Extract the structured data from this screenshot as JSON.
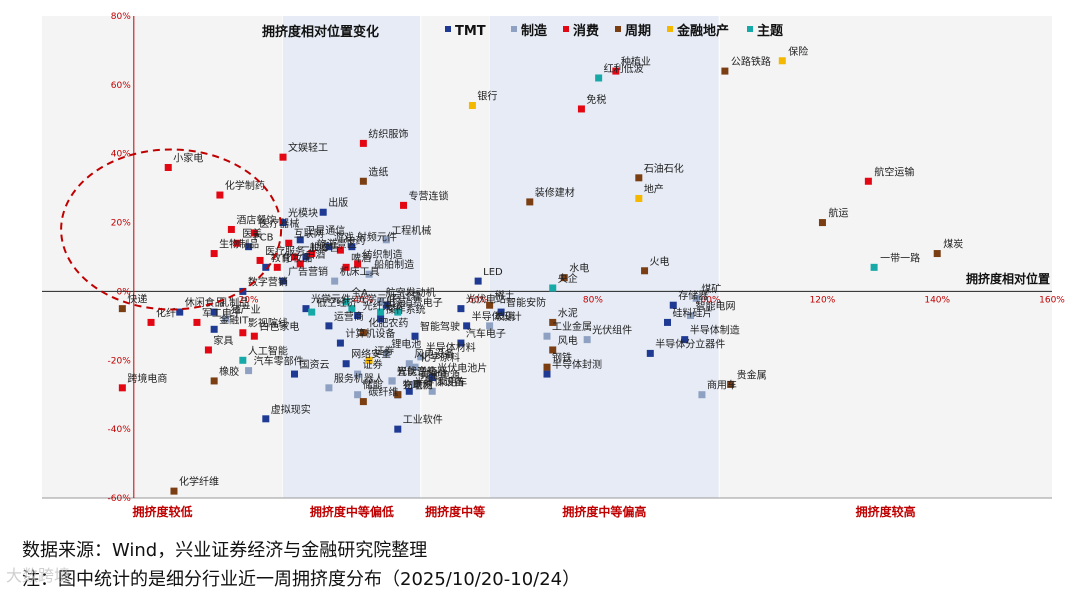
{
  "chart_data": {
    "type": "scatter",
    "title": "拥挤度相对位置变化",
    "xlabel": "拥挤度相对位置",
    "ylabel": "",
    "xlim": [
      -16,
      160
    ],
    "ylim": [
      -60,
      80
    ],
    "xticks": [
      20,
      40,
      60,
      80,
      100,
      120,
      140,
      160
    ],
    "xtick_labels": [
      "20%",
      "40%",
      "60%",
      "80%",
      "100%",
      "120%",
      "140%",
      "160%"
    ],
    "yticks": [
      -60,
      -40,
      -20,
      0,
      20,
      40,
      60,
      80
    ],
    "ytick_labels": [
      "-60%",
      "-40%",
      "-20%",
      "0%",
      "20%",
      "40%",
      "60%",
      "80%"
    ],
    "grid": false,
    "legend_position": "top",
    "bands": [
      {
        "label": "拥挤度较低",
        "from": -16,
        "to": 26,
        "shaded": false
      },
      {
        "label": "拥挤度中等偏低",
        "from": 26,
        "to": 50,
        "shaded": true
      },
      {
        "label": "拥挤度中等",
        "from": 50,
        "to": 62,
        "shaded": false
      },
      {
        "label": "拥挤度中等偏高",
        "from": 62,
        "to": 102,
        "shaded": true
      },
      {
        "label": "拥挤度较高",
        "from": 102,
        "to": 160,
        "shaded": false
      }
    ],
    "series": [
      {
        "name": "TMT",
        "color": "#1f3a93",
        "points": [
          {
            "x": 44,
            "y": -4,
            "label": "云计算"
          },
          {
            "x": 26,
            "y": 20,
            "label": "光模块"
          },
          {
            "x": 29,
            "y": 15,
            "label": "卫星通信"
          },
          {
            "x": 33,
            "y": 23,
            "label": "出版"
          },
          {
            "x": 30,
            "y": 10,
            "label": "IDC"
          },
          {
            "x": 34,
            "y": 13,
            "label": "游戏"
          },
          {
            "x": 38,
            "y": 13,
            "label": "射频元件"
          },
          {
            "x": 20,
            "y": 13,
            "label": "PCB"
          },
          {
            "x": 19,
            "y": 0,
            "label": "数字营销"
          },
          {
            "x": 8,
            "y": -6,
            "label": "休闲食品"
          },
          {
            "x": 14,
            "y": -6,
            "label": "乳制品"
          },
          {
            "x": 23,
            "y": 7,
            "label": "教育"
          },
          {
            "x": 26,
            "y": 3,
            "label": "广告营销"
          },
          {
            "x": 34,
            "y": -10,
            "label": "运营商"
          },
          {
            "x": 39,
            "y": -7,
            "label": "光纤光缆"
          },
          {
            "x": 43,
            "y": -8,
            "label": "操作系统"
          },
          {
            "x": 36,
            "y": -15,
            "label": "计算机设备"
          },
          {
            "x": 37,
            "y": -21,
            "label": "网络安全"
          },
          {
            "x": 28,
            "y": -24,
            "label": "国资云"
          },
          {
            "x": 45,
            "y": -26,
            "label": "智能音箱"
          },
          {
            "x": 46,
            "y": -30,
            "label": "物联网"
          },
          {
            "x": 52,
            "y": -25,
            "label": "光伏电池片"
          },
          {
            "x": 48,
            "y": -29,
            "label": "半导体设备"
          },
          {
            "x": 46,
            "y": -40,
            "label": "工业软件"
          },
          {
            "x": 23,
            "y": -37,
            "label": "虚拟现实"
          },
          {
            "x": 60,
            "y": 3,
            "label": "LED"
          },
          {
            "x": 64,
            "y": -6,
            "label": "智能安防"
          },
          {
            "x": 57,
            "y": -5,
            "label": "光伏电站"
          },
          {
            "x": 58,
            "y": -10,
            "label": "半导体设计"
          },
          {
            "x": 49,
            "y": -13,
            "label": "智能驾驶"
          },
          {
            "x": 57,
            "y": -15,
            "label": "汽车电子"
          },
          {
            "x": 94,
            "y": -4,
            "label": "存储器"
          },
          {
            "x": 93,
            "y": -9,
            "label": "硅料硅片"
          },
          {
            "x": 96,
            "y": -14,
            "label": "半导体制造"
          },
          {
            "x": 90,
            "y": -18,
            "label": "半导体分立器件"
          },
          {
            "x": 72,
            "y": -24,
            "label": "半导体封测"
          },
          {
            "x": 30,
            "y": -5,
            "label": "光学元件"
          },
          {
            "x": 14,
            "y": -11,
            "label": "金融IT"
          }
        ]
      },
      {
        "name": "制造",
        "color": "#8ea1c2",
        "points": [
          {
            "x": 44,
            "y": 15,
            "label": "工程机械"
          },
          {
            "x": 35,
            "y": 3,
            "label": "机床工具"
          },
          {
            "x": 41,
            "y": 5,
            "label": "船舶制造"
          },
          {
            "x": 43,
            "y": -3,
            "label": "航空发动机"
          },
          {
            "x": 34,
            "y": -28,
            "label": "服务机器人"
          },
          {
            "x": 39,
            "y": -24,
            "label": "证券"
          },
          {
            "x": 39,
            "y": -30,
            "label": "储能"
          },
          {
            "x": 45,
            "y": -26,
            "label": "光伏逆变器"
          },
          {
            "x": 49,
            "y": -27,
            "label": "其他电源"
          },
          {
            "x": 52,
            "y": -29,
            "label": "乘用车"
          },
          {
            "x": 48,
            "y": -21,
            "label": "风电设备"
          },
          {
            "x": 44,
            "y": -18,
            "label": "锂电池"
          },
          {
            "x": 50,
            "y": -19,
            "label": "半导体材料"
          },
          {
            "x": 49,
            "y": -22,
            "label": "化学原料"
          },
          {
            "x": 62,
            "y": -10,
            "label": "玻璃"
          },
          {
            "x": 72,
            "y": -13,
            "label": "工业金属"
          },
          {
            "x": 79,
            "y": -14,
            "label": "光伏组件"
          },
          {
            "x": 98,
            "y": -2,
            "label": "煤矿"
          },
          {
            "x": 97,
            "y": -7,
            "label": "智能电网"
          },
          {
            "x": 99,
            "y": -30,
            "label": "商用车"
          },
          {
            "x": 20,
            "y": -23,
            "label": "汽车零部件"
          },
          {
            "x": 16,
            "y": -8,
            "label": "猪产业"
          }
        ]
      },
      {
        "name": "消费",
        "color": "#e30613",
        "points": [
          {
            "x": 6,
            "y": 36,
            "label": "小家电"
          },
          {
            "x": 15,
            "y": 28,
            "label": "化学制药"
          },
          {
            "x": 17,
            "y": 18,
            "label": "酒店餐饮"
          },
          {
            "x": 18,
            "y": 14,
            "label": "医美"
          },
          {
            "x": 14,
            "y": 11,
            "label": "生物制品"
          },
          {
            "x": 22,
            "y": 9,
            "label": "医疗服务"
          },
          {
            "x": 25,
            "y": 7,
            "label": "化妆品"
          },
          {
            "x": 27,
            "y": 14,
            "label": "互联网"
          },
          {
            "x": 29,
            "y": 8,
            "label": "白酒"
          },
          {
            "x": 31,
            "y": 11,
            "label": "旅游景区"
          },
          {
            "x": 28,
            "y": 10,
            "label": "一般零售"
          },
          {
            "x": 36,
            "y": 12,
            "label": "中药"
          },
          {
            "x": 39,
            "y": 8,
            "label": "纺织制造"
          },
          {
            "x": 37,
            "y": 7,
            "label": "啤酒"
          },
          {
            "x": 40,
            "y": 43,
            "label": "纺织服饰"
          },
          {
            "x": 26,
            "y": 39,
            "label": "文娱轻工"
          },
          {
            "x": 47,
            "y": 25,
            "label": "专营连锁"
          },
          {
            "x": 21,
            "y": 17,
            "label": "医疗器械"
          },
          {
            "x": 19,
            "y": -12,
            "label": "影视院线"
          },
          {
            "x": 11,
            "y": -9,
            "label": "军工电子"
          },
          {
            "x": 13,
            "y": -17,
            "label": "家具"
          },
          {
            "x": 21,
            "y": -13,
            "label": "白色家电"
          },
          {
            "x": -2,
            "y": -28,
            "label": "跨境电商"
          },
          {
            "x": 78,
            "y": 53,
            "label": "免税"
          },
          {
            "x": 84,
            "y": 64,
            "label": "种植业"
          },
          {
            "x": 3,
            "y": -9,
            "label": "化纤"
          },
          {
            "x": 128,
            "y": 32,
            "label": "航空运输"
          }
        ]
      },
      {
        "name": "周期",
        "color": "#7a3e12",
        "points": [
          {
            "x": 40,
            "y": 32,
            "label": "造纸"
          },
          {
            "x": 69,
            "y": 26,
            "label": "装修建材"
          },
          {
            "x": 88,
            "y": 33,
            "label": "石油石化"
          },
          {
            "x": 103,
            "y": 64,
            "label": "公路铁路"
          },
          {
            "x": 120,
            "y": 20,
            "label": "航运"
          },
          {
            "x": 140,
            "y": 11,
            "label": "煤炭"
          },
          {
            "x": 89,
            "y": 6,
            "label": "火电"
          },
          {
            "x": 75,
            "y": 4,
            "label": "水电"
          },
          {
            "x": 62,
            "y": -4,
            "label": "稀土"
          },
          {
            "x": 73,
            "y": -9,
            "label": "水泥"
          },
          {
            "x": 73,
            "y": -17,
            "label": "风电"
          },
          {
            "x": 72,
            "y": -22,
            "label": "钢铁"
          },
          {
            "x": 104,
            "y": -27,
            "label": "贵金属"
          },
          {
            "x": 14,
            "y": -26,
            "label": "橡胶"
          },
          {
            "x": 7,
            "y": -58,
            "label": "化学纤维"
          },
          {
            "x": 40,
            "y": -12,
            "label": "化肥农药"
          },
          {
            "x": -2,
            "y": -5,
            "label": "快递"
          },
          {
            "x": 46,
            "y": -30,
            "label": "充电桩"
          },
          {
            "x": 40,
            "y": -32,
            "label": "碳纤维"
          }
        ]
      },
      {
        "name": "金融地产",
        "color": "#f5b800",
        "points": [
          {
            "x": 59,
            "y": 54,
            "label": "银行"
          },
          {
            "x": 113,
            "y": 67,
            "label": "保险"
          },
          {
            "x": 88,
            "y": 27,
            "label": "地产"
          },
          {
            "x": 41,
            "y": -20,
            "label": "证券"
          }
        ]
      },
      {
        "name": "主题",
        "color": "#17a8a8",
        "points": [
          {
            "x": 81,
            "y": 62,
            "label": "红利低波"
          },
          {
            "x": 129,
            "y": 7,
            "label": "一带一路"
          },
          {
            "x": 73,
            "y": 1,
            "label": "央企"
          },
          {
            "x": 31,
            "y": -6,
            "label": "低空经济"
          },
          {
            "x": 37,
            "y": -3,
            "label": "全A"
          },
          {
            "x": 43,
            "y": -6,
            "label": "出海"
          },
          {
            "x": 46,
            "y": -6,
            "label": "消费电子"
          },
          {
            "x": 19,
            "y": -20,
            "label": "人工智能"
          },
          {
            "x": 38,
            "y": -5,
            "label": "光学元件"
          }
        ]
      }
    ],
    "annotation": {
      "type": "dashed-circle",
      "color": "#c00000"
    }
  },
  "footer": {
    "source": "数据来源：Wind，兴业证券经济与金融研究院整理",
    "note": "注：图中统计的是细分行业近一周拥挤度分布（2025/10/20-10/24）"
  },
  "watermark": "大数跨境"
}
